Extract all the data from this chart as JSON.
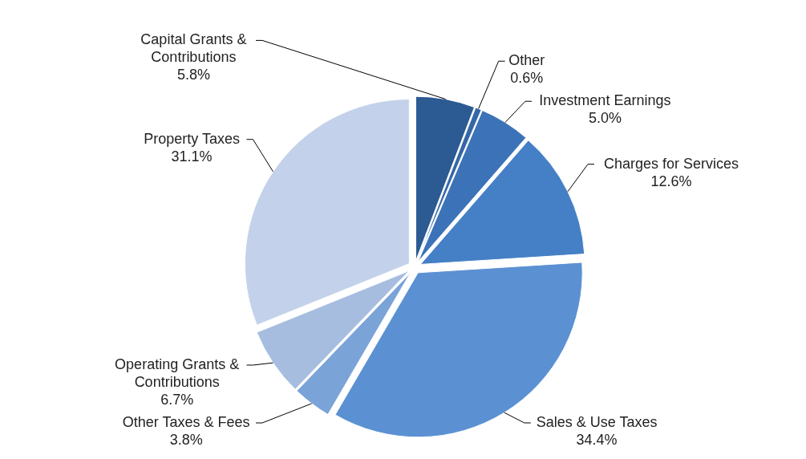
{
  "chart_data": {
    "type": "pie",
    "categories": [
      "Capital Grants & Contributions",
      "Other",
      "Investment Earnings",
      "Charges for Services",
      "Sales & Use Taxes",
      "Other Taxes & Fees",
      "Operating Grants & Contributions",
      "Property Taxes"
    ],
    "values": [
      5.8,
      0.6,
      5.0,
      12.6,
      34.4,
      3.8,
      6.7,
      31.1
    ],
    "value_labels": [
      "5.8%",
      "0.6%",
      "5.0%",
      "12.6%",
      "34.4%",
      "3.8%",
      "6.7%",
      "31.1%"
    ],
    "colors": [
      "#2c5a92",
      "#3567a6",
      "#3c73b8",
      "#4580c6",
      "#5b91d2",
      "#7aa3d8",
      "#a6bde0",
      "#c3d2ea"
    ]
  }
}
